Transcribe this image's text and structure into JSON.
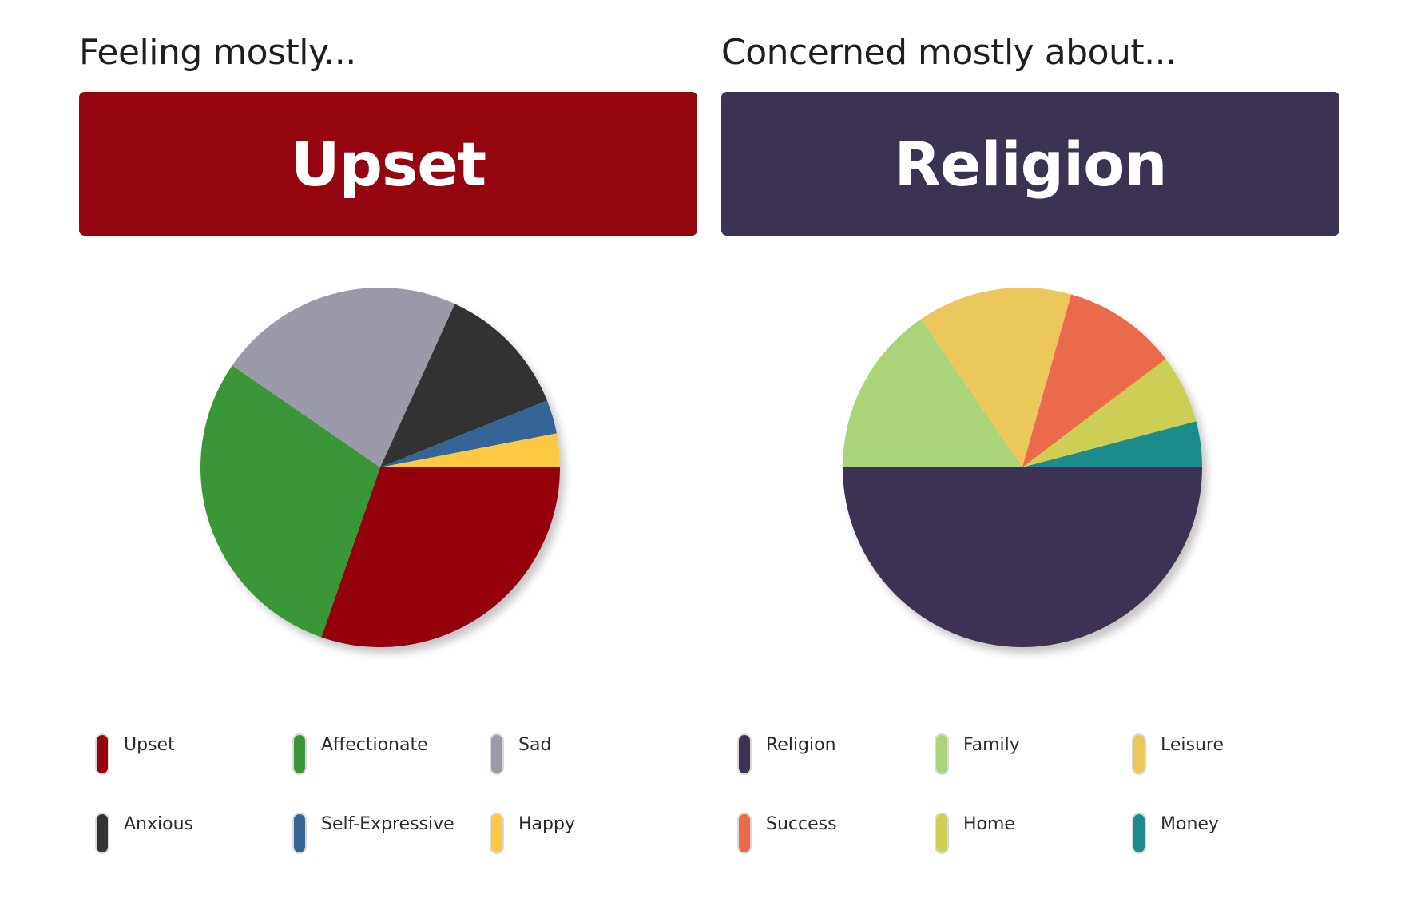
{
  "feelings": {
    "heading": "Feeling mostly...",
    "top": "Upset",
    "accent": "#950510"
  },
  "concerns": {
    "heading": "Concerned mostly about...",
    "top": "Religion",
    "accent": "#3c3352"
  },
  "chart_data": [
    {
      "type": "pie",
      "title": "",
      "categories": [
        "Upset",
        "Affectionate",
        "Sad",
        "Anxious",
        "Self-Expressive",
        "Happy"
      ],
      "values": [
        30,
        29,
        22,
        12,
        3,
        3
      ],
      "colors": [
        "#950510",
        "#3a9639",
        "#9a9aa9",
        "#333333",
        "#356596",
        "#fdc941"
      ],
      "legend_position": "bottom"
    },
    {
      "type": "pie",
      "title": "",
      "categories": [
        "Religion",
        "Family",
        "Leisure",
        "Success",
        "Home",
        "Money"
      ],
      "values": [
        48.5,
        15,
        13.5,
        10,
        6,
        4
      ],
      "colors": [
        "#3c3352",
        "#abd479",
        "#ecc85c",
        "#eb6a4a",
        "#cccf52",
        "#1d8b8b"
      ],
      "legend_position": "bottom"
    }
  ]
}
